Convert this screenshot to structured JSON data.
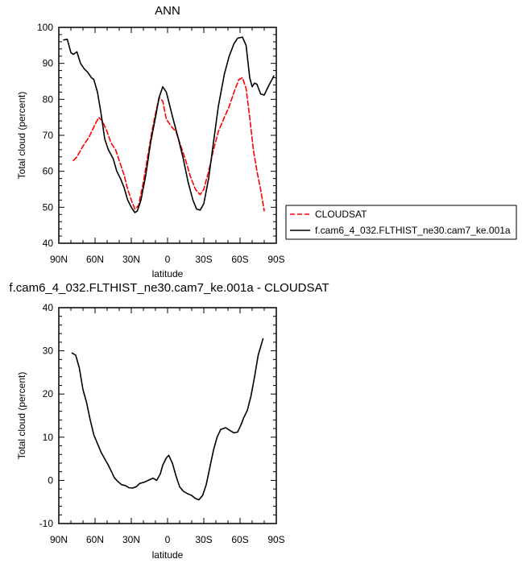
{
  "chart_data": [
    {
      "type": "line",
      "title": "ANN",
      "xlabel": "latitude",
      "ylabel": "Total cloud (percent)",
      "xlim": [
        90,
        -90
      ],
      "ylim": [
        40,
        100
      ],
      "xtick_values": [
        90,
        60,
        30,
        0,
        -30,
        -60,
        -90
      ],
      "xtick_labels": [
        "90N",
        "60N",
        "30N",
        "0",
        "30S",
        "60S",
        "90S"
      ],
      "yticks": [
        40,
        50,
        60,
        70,
        80,
        90,
        100
      ],
      "grid": false,
      "legend_position": "outside-right",
      "series": [
        {
          "name": "CLOUDSAT",
          "color": "#ff0000",
          "dash": "dashed",
          "points": [
            [
              78,
              63
            ],
            [
              75,
              64
            ],
            [
              70,
              67
            ],
            [
              65,
              69.5
            ],
            [
              60,
              73
            ],
            [
              57,
              75
            ],
            [
              54,
              74
            ],
            [
              50,
              71
            ],
            [
              47,
              68
            ],
            [
              43,
              66
            ],
            [
              40,
              63
            ],
            [
              36,
              59
            ],
            [
              33,
              55
            ],
            [
              30,
              52
            ],
            [
              27,
              49.5
            ],
            [
              24,
              50.5
            ],
            [
              20,
              57
            ],
            [
              16,
              65
            ],
            [
              13,
              71
            ],
            [
              10,
              76
            ],
            [
              7,
              80.5
            ],
            [
              4,
              79.5
            ],
            [
              1,
              74.5
            ],
            [
              -3,
              72.5
            ],
            [
              -7,
              71
            ],
            [
              -11,
              67
            ],
            [
              -15,
              63
            ],
            [
              -19,
              58.5
            ],
            [
              -23,
              55
            ],
            [
              -27,
              53.5
            ],
            [
              -30,
              55
            ],
            [
              -34,
              60
            ],
            [
              -38,
              66
            ],
            [
              -42,
              71
            ],
            [
              -47,
              75
            ],
            [
              -51,
              78
            ],
            [
              -55,
              82
            ],
            [
              -59,
              85.5
            ],
            [
              -62,
              86
            ],
            [
              -65,
              83
            ],
            [
              -68,
              75
            ],
            [
              -71,
              66
            ],
            [
              -74,
              60
            ],
            [
              -77,
              55
            ],
            [
              -80,
              49
            ]
          ]
        },
        {
          "name": "f.cam6_4_032.FLTHIST_ne30.cam7_ke.001a",
          "color": "#000000",
          "dash": "solid",
          "points": [
            [
              86,
              96.5
            ],
            [
              83,
              96.7
            ],
            [
              80,
              93
            ],
            [
              78,
              92.5
            ],
            [
              75,
              93.2
            ],
            [
              72,
              90
            ],
            [
              69,
              88.5
            ],
            [
              66,
              87.5
            ],
            [
              63,
              86
            ],
            [
              61,
              85.5
            ],
            [
              58,
              82
            ],
            [
              55,
              76
            ],
            [
              52,
              69
            ],
            [
              49,
              66
            ],
            [
              45,
              63.5
            ],
            [
              42,
              60
            ],
            [
              39,
              58
            ],
            [
              36,
              55.5
            ],
            [
              33,
              52
            ],
            [
              30,
              50
            ],
            [
              27,
              48.5
            ],
            [
              25,
              49
            ],
            [
              22,
              52
            ],
            [
              18,
              59
            ],
            [
              14,
              68
            ],
            [
              10,
              75
            ],
            [
              7,
              80.5
            ],
            [
              4,
              83.5
            ],
            [
              1,
              82
            ],
            [
              -2,
              78
            ],
            [
              -5,
              74
            ],
            [
              -9,
              69
            ],
            [
              -13,
              63.5
            ],
            [
              -17,
              57
            ],
            [
              -21,
              52
            ],
            [
              -24,
              49.5
            ],
            [
              -27,
              49.2
            ],
            [
              -30,
              51
            ],
            [
              -34,
              58
            ],
            [
              -38,
              68
            ],
            [
              -42,
              78
            ],
            [
              -47,
              87
            ],
            [
              -51,
              92
            ],
            [
              -55,
              95.5
            ],
            [
              -58,
              97
            ],
            [
              -62,
              97.3
            ],
            [
              -65,
              95
            ],
            [
              -68,
              86
            ],
            [
              -70,
              83.5
            ],
            [
              -72,
              84.5
            ],
            [
              -74,
              84.2
            ],
            [
              -77,
              81.5
            ],
            [
              -80,
              81.2
            ],
            [
              -84,
              84
            ],
            [
              -88,
              86.5
            ]
          ]
        }
      ]
    },
    {
      "type": "line",
      "title": "f.cam6_4_032.FLTHIST_ne30.cam7_ke.001a - CLOUDSAT",
      "xlabel": "latitude",
      "ylabel": "Total cloud (percent)",
      "xlim": [
        90,
        -90
      ],
      "ylim": [
        -10,
        40
      ],
      "xtick_values": [
        90,
        60,
        30,
        0,
        -30,
        -60,
        -90
      ],
      "xtick_labels": [
        "90N",
        "60N",
        "30N",
        "0",
        "30S",
        "60S",
        "90S"
      ],
      "yticks": [
        -10,
        0,
        10,
        20,
        30,
        40
      ],
      "grid": false,
      "series": [
        {
          "color": "#000000",
          "dash": "solid",
          "points": [
            [
              79,
              29.5
            ],
            [
              76,
              29
            ],
            [
              73,
              26
            ],
            [
              70,
              21
            ],
            [
              67,
              18
            ],
            [
              64,
              14
            ],
            [
              61,
              10.5
            ],
            [
              58,
              8.5
            ],
            [
              55,
              6.5
            ],
            [
              52,
              5
            ],
            [
              49,
              3.5
            ],
            [
              46,
              1.8
            ],
            [
              44,
              0.6
            ],
            [
              41,
              -0.3
            ],
            [
              38,
              -1
            ],
            [
              35,
              -1.2
            ],
            [
              32,
              -1.7
            ],
            [
              29,
              -1.8
            ],
            [
              26,
              -1.5
            ],
            [
              23,
              -0.7
            ],
            [
              19,
              -0.4
            ],
            [
              16,
              0
            ],
            [
              12,
              0.5
            ],
            [
              9,
              0
            ],
            [
              6,
              1.5
            ],
            [
              4,
              3.5
            ],
            [
              1,
              5.2
            ],
            [
              -1,
              5.8
            ],
            [
              -4,
              4
            ],
            [
              -7,
              1
            ],
            [
              -10,
              -1.5
            ],
            [
              -13,
              -2.5
            ],
            [
              -16,
              -3
            ],
            [
              -20,
              -3.5
            ],
            [
              -23,
              -4.2
            ],
            [
              -26,
              -4.5
            ],
            [
              -29,
              -3.5
            ],
            [
              -32,
              -1
            ],
            [
              -35,
              3
            ],
            [
              -38,
              7
            ],
            [
              -41,
              10
            ],
            [
              -44,
              11.8
            ],
            [
              -48,
              12.2
            ],
            [
              -52,
              11.5
            ],
            [
              -55,
              11
            ],
            [
              -58,
              11.2
            ],
            [
              -61,
              13
            ],
            [
              -63,
              14.5
            ],
            [
              -66,
              16.2
            ],
            [
              -69,
              19.5
            ],
            [
              -72,
              24
            ],
            [
              -75,
              29
            ],
            [
              -79,
              32.8
            ]
          ]
        }
      ]
    }
  ]
}
